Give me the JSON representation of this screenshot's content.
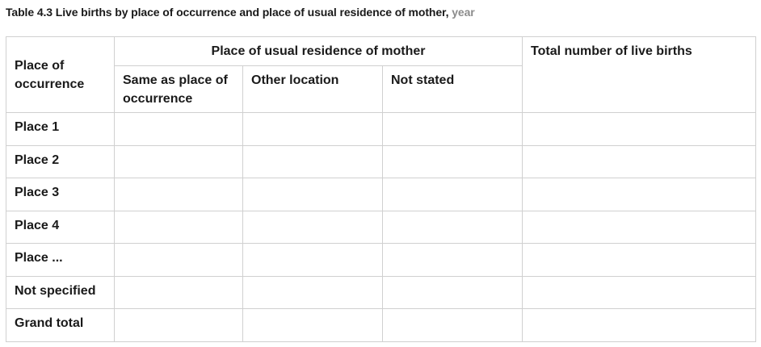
{
  "table": {
    "caption_main": "Table 4.3 Live births by place of occurrence and place of usual residence of mother,",
    "caption_year": "year",
    "row_header": "Place of occurrence",
    "group_header": "Place of usual residence of mother",
    "total_header": "Total number of live births",
    "sub_headers": [
      "Same as place of occurrence",
      "Other location",
      "Not stated"
    ],
    "rows": [
      {
        "label": "Place 1",
        "cells": [
          "",
          "",
          "",
          ""
        ]
      },
      {
        "label": "Place 2",
        "cells": [
          "",
          "",
          "",
          ""
        ]
      },
      {
        "label": "Place 3",
        "cells": [
          "",
          "",
          "",
          ""
        ]
      },
      {
        "label": "Place 4",
        "cells": [
          "",
          "",
          "",
          ""
        ]
      },
      {
        "label": "Place ...",
        "cells": [
          "",
          "",
          "",
          ""
        ]
      },
      {
        "label": "Not specified",
        "cells": [
          "",
          "",
          "",
          ""
        ]
      },
      {
        "label": "Grand total",
        "cells": [
          "",
          "",
          "",
          ""
        ]
      }
    ]
  }
}
